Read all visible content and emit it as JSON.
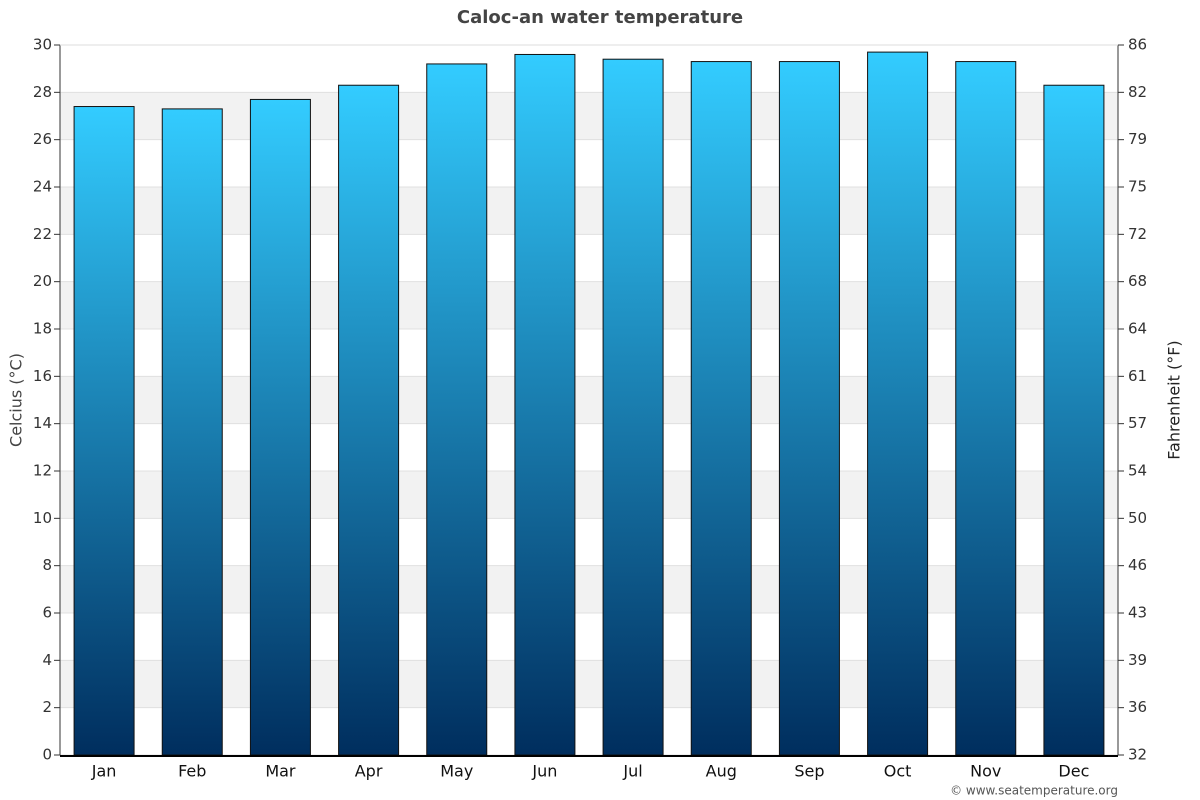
{
  "chart_data": {
    "type": "bar",
    "title": "Caloc-an water temperature",
    "categories": [
      "Jan",
      "Feb",
      "Mar",
      "Apr",
      "May",
      "Jun",
      "Jul",
      "Aug",
      "Sep",
      "Oct",
      "Nov",
      "Dec"
    ],
    "series": [
      {
        "name": "Water temperature",
        "color": "#33ccff",
        "values": [
          27.4,
          27.3,
          27.7,
          28.3,
          29.2,
          29.6,
          29.4,
          29.3,
          29.3,
          29.7,
          29.3,
          28.3
        ]
      }
    ],
    "ylabel": "Celcius (°C)",
    "y2label": "Fahrenheit (°F)",
    "ylim": [
      0,
      30
    ],
    "yticks": [
      0,
      2,
      4,
      6,
      8,
      10,
      12,
      14,
      16,
      18,
      20,
      22,
      24,
      26,
      28,
      30
    ],
    "y2lim": [
      32,
      86
    ],
    "y2ticks": [
      32,
      {
        "value": 35.6,
        "label": "36"
      },
      {
        "value": 39.2,
        "label": "39"
      },
      {
        "value": 42.8,
        "label": "43"
      },
      {
        "value": 46.4,
        "label": "46"
      },
      50,
      {
        "value": 53.6,
        "label": "54"
      },
      {
        "value": 57.2,
        "label": "57"
      },
      {
        "value": 60.8,
        "label": "61"
      },
      {
        "value": 64.4,
        "label": "64"
      },
      68,
      {
        "value": 71.6,
        "label": "72"
      },
      {
        "value": 75.2,
        "label": "75"
      },
      {
        "value": 78.8,
        "label": "79"
      },
      {
        "value": 82.4,
        "label": "82"
      },
      86
    ],
    "grid": true,
    "credit": "© www.seatemperature.org"
  }
}
